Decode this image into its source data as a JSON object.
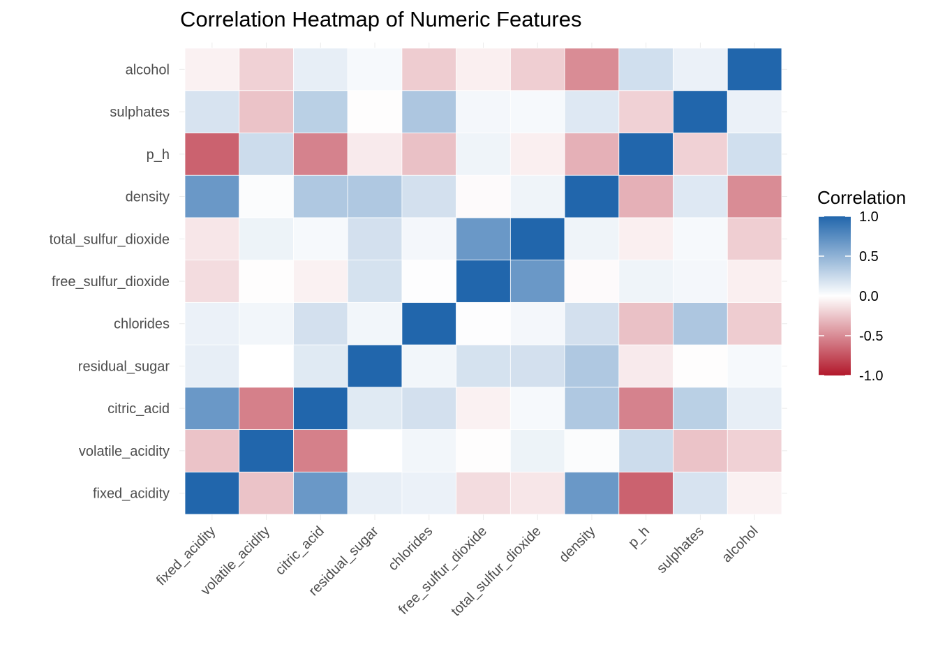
{
  "chart_data": {
    "type": "heatmap",
    "title": "Correlation Heatmap of Numeric Features",
    "xlabel": "",
    "ylabel": "",
    "variables": [
      "fixed_acidity",
      "volatile_acidity",
      "citric_acid",
      "residual_sugar",
      "chlorides",
      "free_sulfur_dioxide",
      "total_sulfur_dioxide",
      "density",
      "p_h",
      "sulphates",
      "alcohol"
    ],
    "matrix": [
      [
        1.0,
        -0.26,
        0.67,
        0.11,
        0.09,
        -0.15,
        -0.11,
        0.67,
        -0.68,
        0.18,
        -0.06
      ],
      [
        -0.26,
        1.0,
        -0.55,
        0.0,
        0.06,
        -0.01,
        0.08,
        0.02,
        0.23,
        -0.26,
        -0.2
      ],
      [
        0.67,
        -0.55,
        1.0,
        0.14,
        0.2,
        -0.06,
        0.04,
        0.36,
        -0.54,
        0.31,
        0.11
      ],
      [
        0.11,
        0.0,
        0.14,
        1.0,
        0.06,
        0.19,
        0.2,
        0.36,
        -0.09,
        -0.01,
        0.04
      ],
      [
        0.09,
        0.06,
        0.2,
        0.06,
        1.0,
        0.01,
        0.05,
        0.2,
        -0.27,
        0.37,
        -0.22
      ],
      [
        -0.15,
        -0.01,
        -0.06,
        0.19,
        0.01,
        1.0,
        0.67,
        -0.02,
        0.07,
        0.05,
        -0.07
      ],
      [
        -0.11,
        0.08,
        0.04,
        0.2,
        0.05,
        0.67,
        1.0,
        0.07,
        -0.07,
        0.04,
        -0.21
      ],
      [
        0.67,
        0.02,
        0.36,
        0.36,
        0.2,
        -0.02,
        0.07,
        1.0,
        -0.34,
        0.15,
        -0.5
      ],
      [
        -0.68,
        0.23,
        -0.54,
        -0.09,
        -0.27,
        0.07,
        -0.07,
        -0.34,
        1.0,
        -0.2,
        0.21
      ],
      [
        0.18,
        -0.26,
        0.31,
        -0.01,
        0.37,
        0.05,
        0.04,
        0.15,
        -0.2,
        1.0,
        0.09
      ],
      [
        -0.06,
        -0.2,
        0.11,
        0.04,
        -0.22,
        -0.07,
        -0.21,
        -0.5,
        0.21,
        0.09,
        1.0
      ]
    ],
    "color_scale": {
      "title": "Correlation",
      "min": -1.0,
      "max": 1.0,
      "low_color": "#b2182b",
      "mid_color": "#ffffff",
      "high_color": "#2166ac",
      "ticks": [
        "1.0",
        "0.5",
        "0.0",
        "-0.5",
        "-1.0"
      ]
    },
    "legend_position": "right",
    "grid": true
  }
}
